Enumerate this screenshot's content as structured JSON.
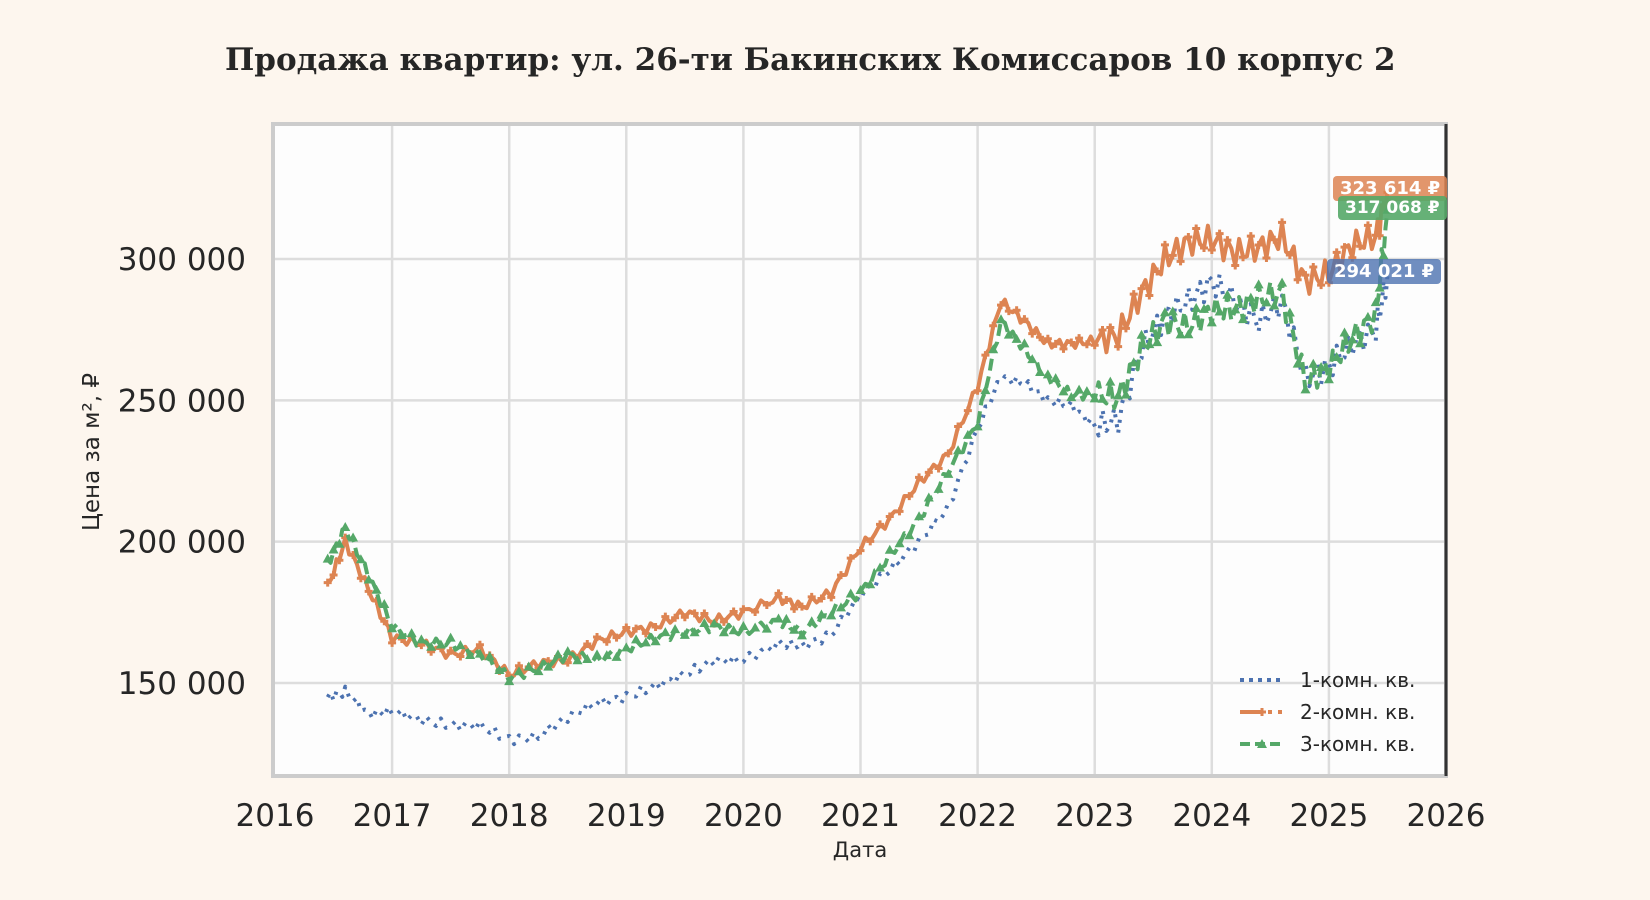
{
  "title": "Продажа квартир: ул. 26-ти Бакинских Комиссаров 10 корпус 2",
  "axes": {
    "xlabel": "Дата",
    "ylabel": "Цена за м², ₽",
    "x_ticks": [
      "2016",
      "2017",
      "2018",
      "2019",
      "2020",
      "2021",
      "2022",
      "2023",
      "2024",
      "2025",
      "2026"
    ],
    "y_ticks": [
      "150 000",
      "200 000",
      "250 000",
      "300 000"
    ]
  },
  "legend": {
    "items": [
      {
        "label": "1-комн. кв.",
        "color": "#4c72b0"
      },
      {
        "label": "2-комн. кв.",
        "color": "#dd8452"
      },
      {
        "label": "3-комн. кв.",
        "color": "#55a868"
      }
    ]
  },
  "last_value_tags": [
    {
      "text": "323 614 ₽",
      "color": "#dd8452"
    },
    {
      "text": "317 068 ₽",
      "color": "#55a868"
    },
    {
      "text": "294 021 ₽",
      "color": "#4c72b0"
    }
  ],
  "chart_data": {
    "type": "line",
    "title": "Продажа квартир: ул. 26-ти Бакинских Комиссаров 10 корпус 2",
    "xlabel": "Дата",
    "ylabel": "Цена за м², ₽",
    "xlim": [
      2016,
      2026
    ],
    "ylim": [
      117000,
      347000
    ],
    "grid": true,
    "legend_position": "lower right",
    "x": [
      2016.45,
      2016.6,
      2016.8,
      2017.0,
      2017.25,
      2017.5,
      2017.75,
      2018.0,
      2018.25,
      2018.5,
      2018.75,
      2019.0,
      2019.25,
      2019.5,
      2019.75,
      2020.0,
      2020.3,
      2020.5,
      2020.75,
      2021.0,
      2021.25,
      2021.5,
      2021.75,
      2022.0,
      2022.2,
      2022.4,
      2022.6,
      2022.8,
      2023.0,
      2023.2,
      2023.4,
      2023.6,
      2023.8,
      2024.0,
      2024.2,
      2024.4,
      2024.6,
      2024.8,
      2025.0,
      2025.2,
      2025.4,
      2025.5
    ],
    "series": [
      {
        "name": "1-комн. кв.",
        "color": "#4c72b0",
        "style": "dotted",
        "values": [
          145000,
          147000,
          139000,
          140000,
          137000,
          135000,
          135000,
          130000,
          131000,
          138000,
          143000,
          145000,
          149000,
          153000,
          158000,
          158000,
          164000,
          163000,
          167000,
          181000,
          190000,
          200000,
          212000,
          240000,
          258000,
          256000,
          250000,
          248000,
          241000,
          243000,
          268000,
          280000,
          285000,
          292000,
          285000,
          278000,
          285000,
          258000,
          262000,
          270000,
          275000,
          294021
        ]
      },
      {
        "name": "2-комн. кв.",
        "color": "#dd8452",
        "style": "solid+dash, plus markers",
        "values": [
          184000,
          200000,
          183000,
          166000,
          164000,
          160000,
          162000,
          153000,
          157000,
          158000,
          165000,
          168000,
          170000,
          175000,
          172000,
          175000,
          180000,
          177000,
          182000,
          198000,
          208000,
          221000,
          231000,
          255000,
          285000,
          278000,
          270000,
          270000,
          271000,
          273000,
          288000,
          300000,
          306000,
          307000,
          302000,
          304000,
          308000,
          292000,
          295000,
          305000,
          308000,
          323614
        ]
      },
      {
        "name": "3-комн. кв.",
        "color": "#55a868",
        "style": "dashed, triangle markers",
        "values": [
          192000,
          205000,
          188000,
          170000,
          164000,
          164000,
          160000,
          152000,
          155000,
          160000,
          158000,
          162000,
          166000,
          168000,
          170000,
          168000,
          172000,
          168000,
          175000,
          182000,
          195000,
          208000,
          225000,
          242000,
          278000,
          268000,
          258000,
          252000,
          252000,
          251000,
          268000,
          278000,
          276000,
          282000,
          282000,
          286000,
          288000,
          256000,
          262000,
          272000,
          280000,
          317068
        ]
      }
    ]
  }
}
